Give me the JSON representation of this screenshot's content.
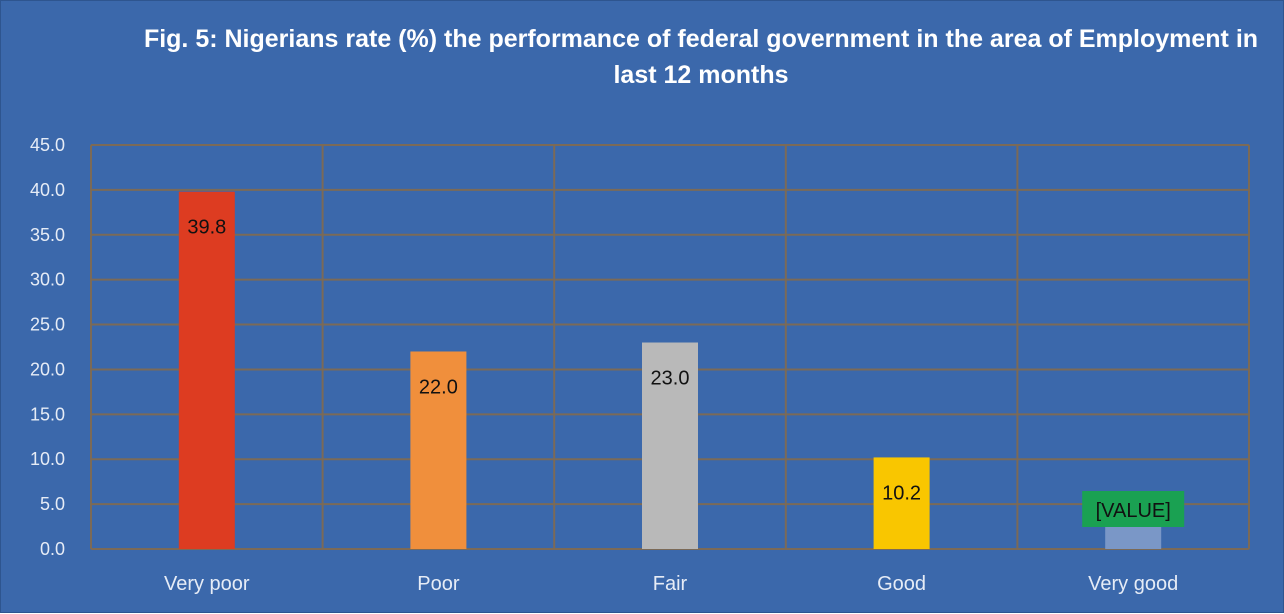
{
  "chart_data": {
    "type": "bar",
    "title": "Fig. 5: Nigerians rate (%) the performance of federal government in the area of Employment in last 12 months",
    "categories": [
      "Very poor",
      "Poor",
      "Fair",
      "Good",
      "Very good"
    ],
    "values": [
      39.8,
      22.0,
      23.0,
      10.2,
      4.0
    ],
    "data_labels": [
      "39.8",
      "22.0",
      "23.0",
      "10.2",
      "[VALUE]"
    ],
    "colors": [
      "#dd3c21",
      "#f08f3c",
      "#b9b9b9",
      "#f9c600",
      "#7a97c7"
    ],
    "label_box_colors": [
      "",
      "",
      "",
      "",
      "#1aa152"
    ],
    "ylim": [
      0,
      45
    ],
    "yticks": [
      "0.0",
      "5.0",
      "10.0",
      "15.0",
      "20.0",
      "25.0",
      "30.0",
      "35.0",
      "40.0",
      "45.0"
    ],
    "grid": true,
    "legend": "none",
    "background": "#3b68ab",
    "gridline_color": "#7b6a57"
  }
}
